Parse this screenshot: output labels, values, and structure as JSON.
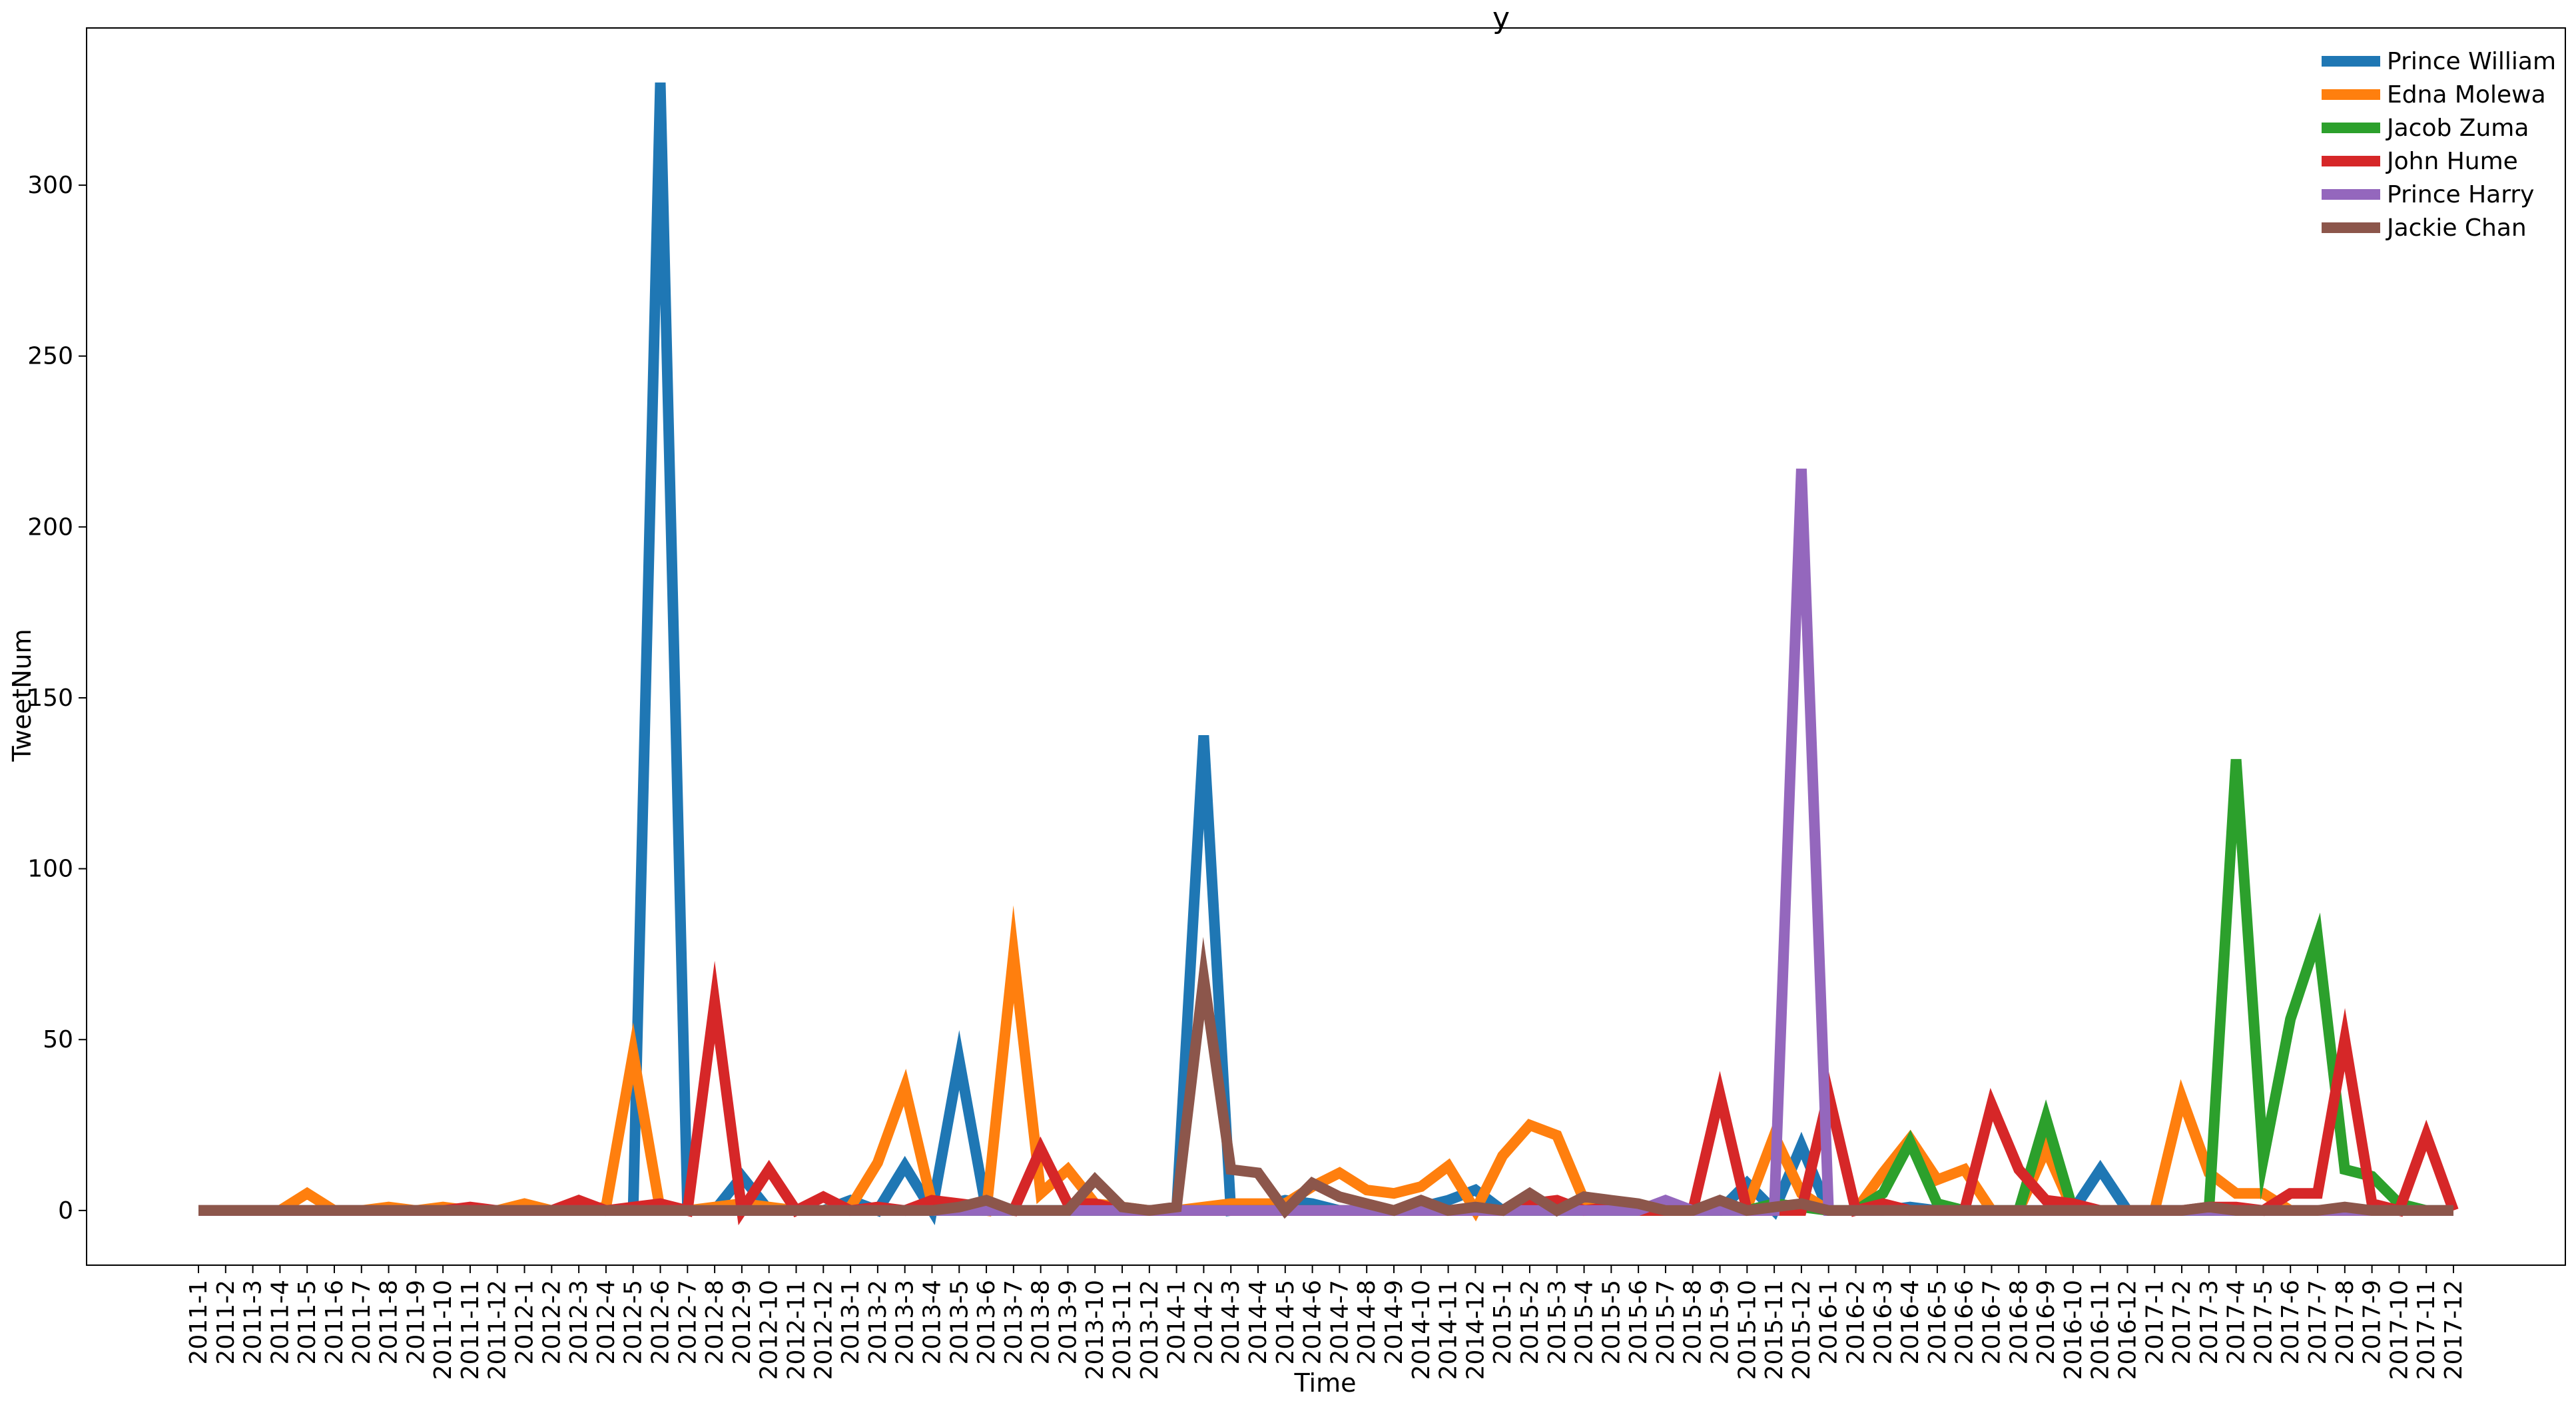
{
  "chart_data": {
    "type": "line",
    "title": "y",
    "xlabel": "Time",
    "ylabel": "TweetNum",
    "ylim": [
      -16,
      346
    ],
    "yticks": [
      0,
      50,
      100,
      150,
      200,
      250,
      300
    ],
    "ytick_labels": [
      "0",
      "50",
      "100",
      "150",
      "200",
      "250",
      "300"
    ],
    "grid": false,
    "legend_position": "top-right",
    "x": [
      "2011-1",
      "2011-2",
      "2011-3",
      "2011-4",
      "2011-5",
      "2011-6",
      "2011-7",
      "2011-8",
      "2011-9",
      "2011-10",
      "2011-11",
      "2011-12",
      "2012-1",
      "2012-2",
      "2012-3",
      "2012-4",
      "2012-5",
      "2012-6",
      "2012-7",
      "2012-8",
      "2012-9",
      "2012-10",
      "2012-11",
      "2012-12",
      "2013-1",
      "2013-2",
      "2013-3",
      "2013-4",
      "2013-5",
      "2013-6",
      "2013-7",
      "2013-8",
      "2013-9",
      "2013-10",
      "2013-11",
      "2013-12",
      "2014-1",
      "2014-2",
      "2014-3",
      "2014-4",
      "2014-5",
      "2014-6",
      "2014-7",
      "2014-8",
      "2014-9",
      "2014-10",
      "2014-11",
      "2014-12",
      "2015-1",
      "2015-2",
      "2015-3",
      "2015-4",
      "2015-5",
      "2015-6",
      "2015-7",
      "2015-8",
      "2015-9",
      "2015-10",
      "2015-11",
      "2015-12",
      "2016-1",
      "2016-2",
      "2016-3",
      "2016-4",
      "2016-5",
      "2016-6",
      "2016-7",
      "2016-8",
      "2016-9",
      "2016-10",
      "2016-11",
      "2016-12",
      "2017-1",
      "2017-2",
      "2017-3",
      "2017-4",
      "2017-5",
      "2017-6",
      "2017-7",
      "2017-8",
      "2017-9",
      "2017-10",
      "2017-11",
      "2017-12"
    ],
    "series": [
      {
        "name": "Prince William",
        "color": "#1f77b4",
        "values": [
          0,
          0,
          0,
          0,
          0,
          0,
          0,
          0,
          0,
          0,
          0,
          0,
          0,
          0,
          0,
          0,
          0,
          330,
          0,
          0,
          10,
          0,
          0,
          0,
          3,
          0,
          13,
          0,
          44,
          0,
          0,
          0,
          0,
          0,
          0,
          0,
          0,
          139,
          0,
          1,
          3,
          2,
          0,
          0,
          0,
          1,
          3,
          6,
          0,
          0,
          0,
          0,
          0,
          0,
          0,
          0,
          0,
          8,
          0,
          19,
          0,
          0,
          0,
          1,
          0,
          0,
          0,
          0,
          0,
          0,
          12,
          0,
          0,
          0,
          0,
          0,
          0,
          0,
          0,
          0,
          0,
          0,
          0,
          0
        ]
      },
      {
        "name": "Edna Molewa",
        "color": "#ff7f0e",
        "values": [
          0,
          0,
          0,
          0,
          5,
          0,
          0,
          1,
          0,
          1,
          0,
          0,
          2,
          0,
          0,
          1,
          46,
          0,
          0,
          1,
          2,
          1,
          0,
          0,
          1,
          14,
          36,
          2,
          1,
          0,
          75,
          5,
          12,
          2,
          1,
          0,
          0,
          1,
          2,
          2,
          2,
          7,
          11,
          6,
          5,
          7,
          13,
          0,
          16,
          25,
          22,
          3,
          2,
          1,
          0,
          0,
          0,
          1,
          22,
          5,
          0,
          0,
          11,
          21,
          9,
          12,
          0,
          0,
          18,
          0,
          0,
          0,
          0,
          33,
          11,
          5,
          5,
          0,
          0,
          0,
          0,
          0,
          0,
          0
        ]
      },
      {
        "name": "Jacob Zuma",
        "color": "#2ca02c",
        "values": [
          0,
          0,
          0,
          0,
          0,
          0,
          0,
          0,
          0,
          0,
          0,
          0,
          0,
          0,
          0,
          0,
          0,
          0,
          0,
          0,
          0,
          0,
          0,
          0,
          0,
          0,
          0,
          0,
          0,
          0,
          0,
          0,
          0,
          0,
          0,
          0,
          0,
          0,
          0,
          0,
          0,
          0,
          0,
          0,
          0,
          0,
          0,
          0,
          0,
          0,
          0,
          0,
          0,
          0,
          0,
          0,
          0,
          0,
          2,
          1,
          0,
          0,
          5,
          20,
          2,
          0,
          0,
          0,
          27,
          0,
          0,
          0,
          0,
          0,
          0,
          132,
          15,
          56,
          80,
          12,
          10,
          2,
          0,
          0
        ]
      },
      {
        "name": "John Hume",
        "color": "#d62728",
        "values": [
          0,
          0,
          0,
          0,
          0,
          0,
          0,
          0,
          0,
          0,
          1,
          0,
          0,
          0,
          3,
          0,
          1,
          2,
          0,
          61,
          0,
          12,
          0,
          4,
          0,
          1,
          0,
          3,
          2,
          1,
          0,
          18,
          2,
          2,
          0,
          0,
          0,
          0,
          0,
          0,
          0,
          0,
          0,
          0,
          0,
          0,
          0,
          0,
          0,
          2,
          3,
          0,
          1,
          0,
          0,
          0,
          34,
          0,
          0,
          0,
          34,
          0,
          2,
          0,
          0,
          0,
          31,
          12,
          3,
          2,
          0,
          0,
          0,
          0,
          1,
          1,
          0,
          5,
          5,
          50,
          2,
          0,
          22,
          0
        ]
      },
      {
        "name": "Prince Harry",
        "color": "#9467bd",
        "values": [
          0,
          0,
          0,
          0,
          0,
          0,
          0,
          0,
          0,
          0,
          0,
          0,
          0,
          0,
          0,
          0,
          0,
          0,
          0,
          0,
          0,
          0,
          0,
          0,
          0,
          0,
          0,
          0,
          0,
          0,
          0,
          0,
          0,
          0,
          0,
          0,
          0,
          0,
          0,
          0,
          0,
          0,
          0,
          0,
          0,
          0,
          0,
          0,
          0,
          0,
          0,
          0,
          0,
          0,
          3,
          0,
          0,
          0,
          0,
          217,
          0,
          0,
          0,
          0,
          0,
          0,
          0,
          0,
          0,
          0,
          0,
          0,
          0,
          0,
          0,
          0,
          0,
          0,
          0,
          0,
          0,
          0,
          0,
          0
        ]
      },
      {
        "name": "Jackie Chan",
        "color": "#8c564b",
        "values": [
          0,
          0,
          0,
          0,
          0,
          0,
          0,
          0,
          0,
          0,
          0,
          0,
          0,
          0,
          0,
          0,
          0,
          0,
          0,
          0,
          0,
          0,
          0,
          0,
          0,
          0,
          0,
          0,
          1,
          3,
          0,
          0,
          0,
          9,
          1,
          0,
          1,
          68,
          12,
          11,
          0,
          8,
          4,
          2,
          0,
          3,
          0,
          1,
          0,
          5,
          0,
          4,
          3,
          2,
          0,
          0,
          3,
          0,
          1,
          2,
          0,
          0,
          0,
          0,
          0,
          0,
          0,
          0,
          0,
          0,
          0,
          0,
          0,
          0,
          1,
          0,
          0,
          0,
          0,
          1,
          0,
          0,
          0,
          0
        ]
      }
    ]
  }
}
